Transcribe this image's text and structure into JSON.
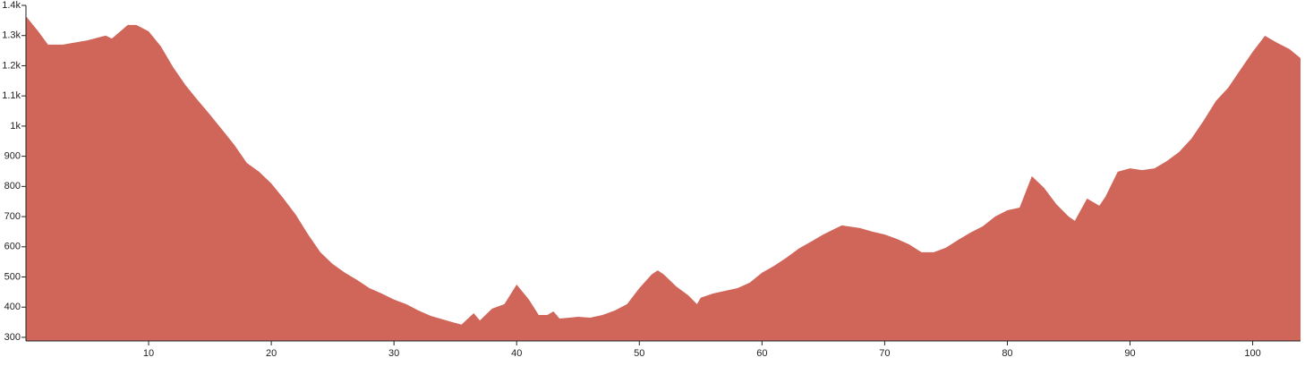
{
  "chart_data": {
    "type": "area",
    "color": "#d0655a",
    "x": [
      0,
      1,
      1.8,
      3,
      5,
      6.5,
      7,
      8.3,
      9,
      10,
      11,
      12,
      13,
      14,
      15,
      16,
      17,
      18,
      19,
      20,
      21,
      22,
      23,
      24,
      25,
      26,
      27,
      28,
      29,
      30,
      31,
      32,
      33,
      34,
      35.5,
      36.5,
      37,
      38,
      39,
      40,
      41,
      41.8,
      42.5,
      43,
      43.5,
      45,
      46,
      47,
      48,
      49,
      50,
      51,
      51.5,
      52,
      53,
      54,
      54.7,
      55,
      56,
      57,
      58,
      59,
      60,
      61,
      62,
      63,
      64,
      65,
      66.5,
      68,
      69,
      70,
      71,
      72,
      73,
      74,
      75,
      76,
      77,
      78,
      79,
      80,
      81,
      82,
      83,
      84,
      85,
      85.5,
      86.5,
      87.5,
      88,
      89,
      90,
      91,
      92,
      93,
      94,
      95,
      96,
      97,
      98,
      99,
      100,
      101,
      102,
      103,
      103.9
    ],
    "values": [
      1364,
      1314,
      1270,
      1270,
      1284,
      1300,
      1290,
      1335,
      1335,
      1314,
      1264,
      1195,
      1136,
      1086,
      1038,
      988,
      937,
      878,
      849,
      810,
      760,
      706,
      641,
      582,
      543,
      514,
      490,
      463,
      445,
      425,
      410,
      389,
      371,
      359,
      342,
      380,
      356,
      395,
      410,
      475,
      425,
      374,
      374,
      386,
      362,
      368,
      365,
      374,
      389,
      410,
      463,
      508,
      522,
      508,
      469,
      439,
      410,
      431,
      445,
      454,
      463,
      481,
      514,
      537,
      564,
      594,
      617,
      641,
      671,
      662,
      650,
      641,
      626,
      608,
      582,
      582,
      597,
      623,
      647,
      668,
      700,
      721,
      730,
      834,
      795,
      741,
      700,
      686,
      760,
      736,
      766,
      849,
      860,
      854,
      860,
      884,
      914,
      958,
      1018,
      1083,
      1127,
      1187,
      1246,
      1299,
      1276,
      1255,
      1225
    ],
    "xlim": [
      0,
      103.9
    ],
    "ylim": [
      288,
      1400
    ],
    "xticks": [
      10,
      20,
      30,
      40,
      50,
      60,
      70,
      80,
      90,
      100
    ],
    "yticks": [
      300,
      400,
      500,
      600,
      700,
      800,
      900,
      {
        "value": 1000,
        "label": "1k"
      },
      {
        "value": 1100,
        "label": "1.1k"
      },
      {
        "value": 1200,
        "label": "1.2k"
      },
      {
        "value": 1300,
        "label": "1.3k"
      },
      {
        "value": 1400,
        "label": "1.4k"
      }
    ]
  }
}
